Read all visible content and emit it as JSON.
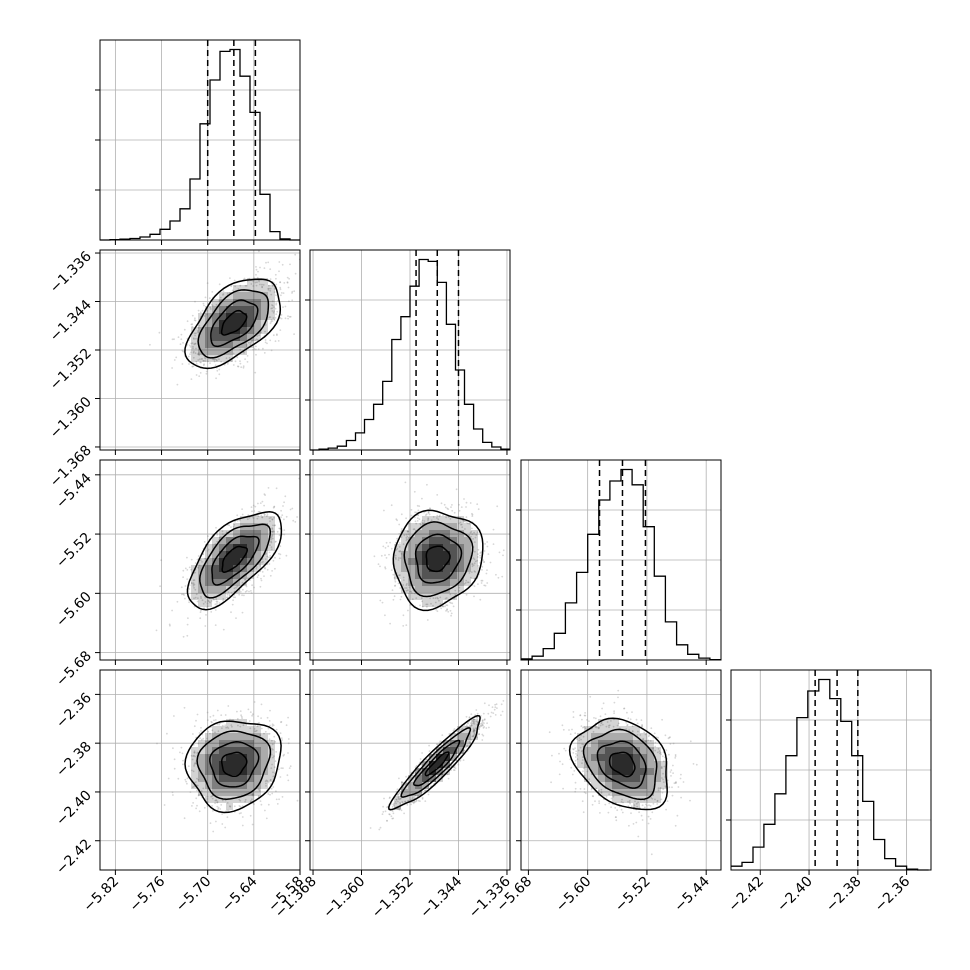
{
  "chart_data": {
    "type": "corner",
    "title": "",
    "grid": true,
    "variables": [
      {
        "name": "",
        "ticks": [
          -5.82,
          -5.76,
          -5.7,
          -5.64,
          -5.58
        ],
        "tick_labels": [
          "−5.82",
          "−5.76",
          "−5.70",
          "−5.64",
          "−5.58"
        ],
        "range": [
          -5.84,
          -5.58
        ],
        "quantiles": [
          -5.7,
          -5.666,
          -5.638
        ],
        "median": -5.666,
        "sigma": 0.029
      },
      {
        "name": "",
        "ticks": [
          -1.368,
          -1.36,
          -1.352,
          -1.344,
          -1.336
        ],
        "tick_labels": [
          "−1.368",
          "−1.360",
          "−1.352",
          "−1.344",
          "−1.336"
        ],
        "range": [
          -1.3685,
          -1.3355
        ],
        "quantiles": [
          -1.351,
          -1.3475,
          -1.344
        ],
        "median": -1.3475,
        "sigma": 0.0035
      },
      {
        "name": "",
        "ticks": [
          -5.68,
          -5.6,
          -5.52,
          -5.44
        ],
        "tick_labels": [
          "−5.68",
          "−5.60",
          "−5.52",
          "−5.44"
        ],
        "range": [
          -5.69,
          -5.42
        ],
        "quantiles": [
          -5.584,
          -5.553,
          -5.522
        ],
        "median": -5.553,
        "sigma": 0.031
      },
      {
        "name": "",
        "ticks": [
          -2.42,
          -2.4,
          -2.38,
          -2.36
        ],
        "tick_labels": [
          "−2.42",
          "−2.40",
          "−2.38",
          "−2.36"
        ],
        "range": [
          -2.432,
          -2.35
        ],
        "quantiles": [
          -2.3975,
          -2.3885,
          -2.38
        ],
        "median": -2.3885,
        "sigma": 0.0088
      }
    ],
    "histograms": [
      {
        "variable": 0,
        "bin_edges": [
          -5.84,
          -5.827,
          -5.814,
          -5.801,
          -5.788,
          -5.775,
          -5.762,
          -5.749,
          -5.736,
          -5.723,
          -5.71,
          -5.697,
          -5.684,
          -5.671,
          -5.658,
          -5.645,
          -5.632,
          -5.619,
          -5.606,
          -5.593,
          -5.58
        ],
        "counts": [
          0,
          1,
          2,
          4,
          8,
          15,
          28,
          50,
          82,
          160,
          305,
          420,
          495,
          500,
          430,
          335,
          120,
          22,
          3,
          0
        ]
      },
      {
        "variable": 1,
        "bin_edges": [
          -1.3685,
          -1.367,
          -1.3655,
          -1.364,
          -1.3625,
          -1.361,
          -1.3595,
          -1.358,
          -1.3565,
          -1.355,
          -1.3535,
          -1.352,
          -1.3505,
          -1.349,
          -1.3475,
          -1.346,
          -1.3445,
          -1.343,
          -1.3415,
          -1.34,
          -1.3385,
          -1.337,
          -1.3355
        ],
        "counts": [
          0,
          2,
          5,
          10,
          25,
          45,
          80,
          120,
          180,
          290,
          350,
          430,
          500,
          495,
          440,
          330,
          210,
          120,
          55,
          20,
          8,
          2
        ]
      },
      {
        "variable": 2,
        "bin_edges": [
          -5.69,
          -5.675,
          -5.66,
          -5.645,
          -5.63,
          -5.615,
          -5.6,
          -5.585,
          -5.57,
          -5.555,
          -5.54,
          -5.525,
          -5.51,
          -5.495,
          -5.48,
          -5.465,
          -5.45,
          -5.435,
          -5.42
        ],
        "counts": [
          3,
          10,
          30,
          70,
          150,
          230,
          330,
          420,
          470,
          500,
          460,
          350,
          220,
          100,
          40,
          15,
          5,
          1
        ]
      },
      {
        "variable": 3,
        "bin_edges": [
          -2.432,
          -2.4275,
          -2.423,
          -2.4185,
          -2.414,
          -2.4095,
          -2.405,
          -2.4005,
          -2.396,
          -2.3915,
          -2.387,
          -2.3825,
          -2.378,
          -2.3735,
          -2.369,
          -2.3645,
          -2.36,
          -2.3555,
          -2.351
        ],
        "counts": [
          10,
          20,
          60,
          120,
          200,
          300,
          400,
          470,
          500,
          450,
          390,
          300,
          180,
          80,
          30,
          10,
          2,
          0
        ]
      }
    ],
    "pairs": [
      {
        "x": 0,
        "y": 1,
        "correlation": 0.55
      },
      {
        "x": 0,
        "y": 2,
        "correlation": 0.65
      },
      {
        "x": 1,
        "y": 2,
        "correlation": 0.1
      },
      {
        "x": 0,
        "y": 3,
        "correlation": 0.1
      },
      {
        "x": 1,
        "y": 3,
        "correlation": 0.92
      },
      {
        "x": 2,
        "y": 3,
        "correlation": -0.28
      }
    ],
    "contour_levels_sigma": [
      0.5,
      1.0,
      1.5,
      2.0
    ],
    "colors": {
      "hist": "#000000",
      "quantile_line": "#000000",
      "contour": "#000000",
      "points": "#8c8c8c",
      "grid": "#b0b0b0",
      "density": "#000000"
    }
  }
}
